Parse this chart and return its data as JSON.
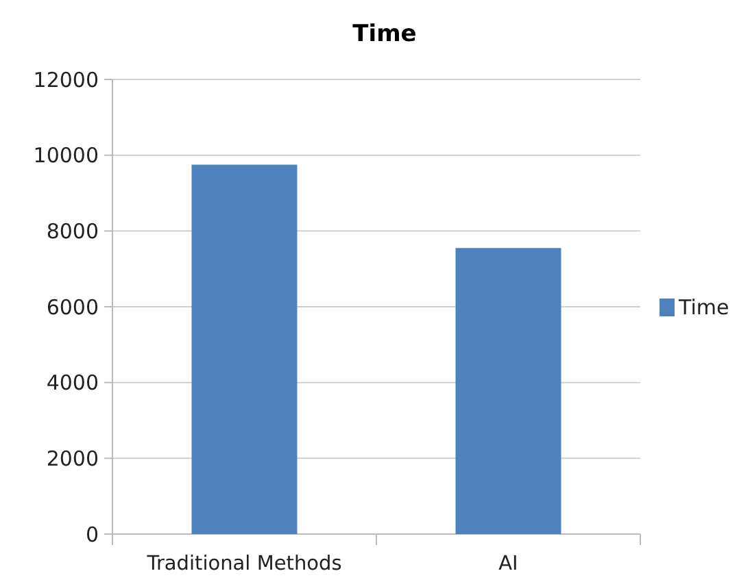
{
  "chart_data": {
    "type": "bar",
    "title": "Time",
    "categories": [
      "Traditional Methods",
      "AI"
    ],
    "series": [
      {
        "name": "Time",
        "color": "#4f81bd",
        "values": [
          9750,
          7550
        ]
      }
    ],
    "ylim": [
      0,
      12000
    ],
    "yticks": [
      0,
      2000,
      4000,
      6000,
      8000,
      10000,
      12000
    ],
    "grid": "y",
    "legend": "right"
  }
}
